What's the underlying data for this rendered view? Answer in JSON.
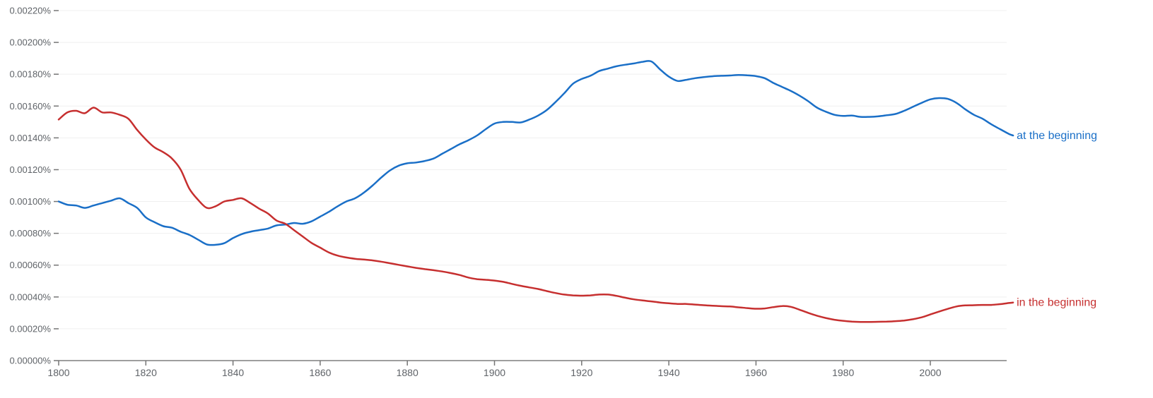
{
  "chart_data": {
    "type": "line",
    "title": "",
    "xlabel": "",
    "ylabel": "",
    "xlim": [
      1800,
      2019
    ],
    "ylim": [
      0,
      0.0022
    ],
    "grid": true,
    "legend_position": "inline-right-end-of-lines",
    "x_ticks": [
      "1800",
      "1820",
      "1840",
      "1860",
      "1880",
      "1900",
      "1920",
      "1940",
      "1960",
      "1980",
      "2000"
    ],
    "y_ticks": [
      "0.00000%",
      "0.00020%",
      "0.00040%",
      "0.00060%",
      "0.00080%",
      "0.00100%",
      "0.00120%",
      "0.00140%",
      "0.00160%",
      "0.00180%",
      "0.00200%",
      "0.00220%"
    ],
    "x": [
      1800,
      1802,
      1804,
      1806,
      1808,
      1810,
      1812,
      1814,
      1816,
      1818,
      1820,
      1822,
      1824,
      1826,
      1828,
      1830,
      1832,
      1834,
      1836,
      1838,
      1840,
      1842,
      1844,
      1846,
      1848,
      1850,
      1852,
      1854,
      1856,
      1858,
      1860,
      1862,
      1864,
      1866,
      1868,
      1870,
      1872,
      1874,
      1876,
      1878,
      1880,
      1882,
      1884,
      1886,
      1888,
      1890,
      1892,
      1894,
      1896,
      1898,
      1900,
      1902,
      1904,
      1906,
      1908,
      1910,
      1912,
      1914,
      1916,
      1918,
      1920,
      1922,
      1924,
      1926,
      1928,
      1930,
      1932,
      1934,
      1936,
      1938,
      1940,
      1942,
      1944,
      1946,
      1948,
      1950,
      1952,
      1954,
      1956,
      1958,
      1960,
      1962,
      1964,
      1966,
      1968,
      1970,
      1972,
      1974,
      1976,
      1978,
      1980,
      1982,
      1984,
      1986,
      1988,
      1990,
      1992,
      1994,
      1996,
      1998,
      2000,
      2002,
      2004,
      2006,
      2008,
      2010,
      2012,
      2014,
      2016,
      2018,
      2019
    ],
    "series": [
      {
        "name": "at the beginning",
        "color": "#1a6fc7",
        "values": [
          0.001,
          0.00098,
          0.000975,
          0.00096,
          0.000975,
          0.00099,
          0.001005,
          0.00102,
          0.00099,
          0.00096,
          0.0009,
          0.00087,
          0.000845,
          0.000835,
          0.00081,
          0.00079,
          0.00076,
          0.00073,
          0.000728,
          0.000738,
          0.00077,
          0.000795,
          0.00081,
          0.00082,
          0.00083,
          0.00085,
          0.000855,
          0.000865,
          0.00086,
          0.000875,
          0.000905,
          0.000935,
          0.00097,
          0.001,
          0.00102,
          0.001055,
          0.0011,
          0.00115,
          0.001195,
          0.001225,
          0.00124,
          0.001245,
          0.001255,
          0.00127,
          0.0013,
          0.00133,
          0.00136,
          0.001385,
          0.001415,
          0.001455,
          0.00149,
          0.0015,
          0.0015,
          0.001497,
          0.001515,
          0.00154,
          0.001575,
          0.001625,
          0.00168,
          0.00174,
          0.00177,
          0.00179,
          0.00182,
          0.001835,
          0.00185,
          0.00186,
          0.001868,
          0.001878,
          0.00188,
          0.00183,
          0.001785,
          0.001758,
          0.001765,
          0.001775,
          0.001782,
          0.001787,
          0.00179,
          0.001792,
          0.001795,
          0.001793,
          0.001788,
          0.001775,
          0.001745,
          0.00172,
          0.001695,
          0.001665,
          0.00163,
          0.00159,
          0.001565,
          0.001545,
          0.001538,
          0.00154,
          0.001532,
          0.001532,
          0.001535,
          0.001542,
          0.00155,
          0.00157,
          0.001595,
          0.00162,
          0.001642,
          0.00165,
          0.001645,
          0.00162,
          0.00158,
          0.001545,
          0.00152,
          0.001485,
          0.001455,
          0.001425,
          0.001415
        ]
      },
      {
        "name": "in the beginning",
        "color": "#c62f2f",
        "values": [
          0.001515,
          0.00156,
          0.00157,
          0.001555,
          0.00159,
          0.00156,
          0.00156,
          0.001545,
          0.00152,
          0.00145,
          0.00139,
          0.00134,
          0.00131,
          0.00127,
          0.0012,
          0.00108,
          0.00101,
          0.00096,
          0.00097,
          0.001,
          0.00101,
          0.00102,
          0.00099,
          0.000955,
          0.000925,
          0.00088,
          0.00086,
          0.00082,
          0.00078,
          0.00074,
          0.00071,
          0.00068,
          0.00066,
          0.000648,
          0.00064,
          0.000635,
          0.00063,
          0.000622,
          0.000612,
          0.000602,
          0.000592,
          0.000583,
          0.000575,
          0.000568,
          0.00056,
          0.00055,
          0.000538,
          0.000522,
          0.000512,
          0.000508,
          0.000503,
          0.000495,
          0.000482,
          0.00047,
          0.00046,
          0.00045,
          0.000437,
          0.000425,
          0.000415,
          0.00041,
          0.000408,
          0.00041,
          0.000415,
          0.000415,
          0.000407,
          0.000395,
          0.000385,
          0.000378,
          0.000372,
          0.000365,
          0.00036,
          0.000356,
          0.000356,
          0.000352,
          0.000348,
          0.000345,
          0.000342,
          0.00034,
          0.000335,
          0.00033,
          0.000326,
          0.000328,
          0.000336,
          0.000343,
          0.000338,
          0.00032,
          0.0003,
          0.000282,
          0.000268,
          0.000257,
          0.00025,
          0.000245,
          0.000243,
          0.000243,
          0.000244,
          0.000245,
          0.000248,
          0.000252,
          0.00026,
          0.000272,
          0.00029,
          0.000308,
          0.000325,
          0.00034,
          0.000347,
          0.000348,
          0.00035,
          0.00035,
          0.000355,
          0.000362,
          0.000365
        ]
      }
    ]
  },
  "labels": {
    "series_0": "at the beginning",
    "series_1": "in the beginning"
  }
}
